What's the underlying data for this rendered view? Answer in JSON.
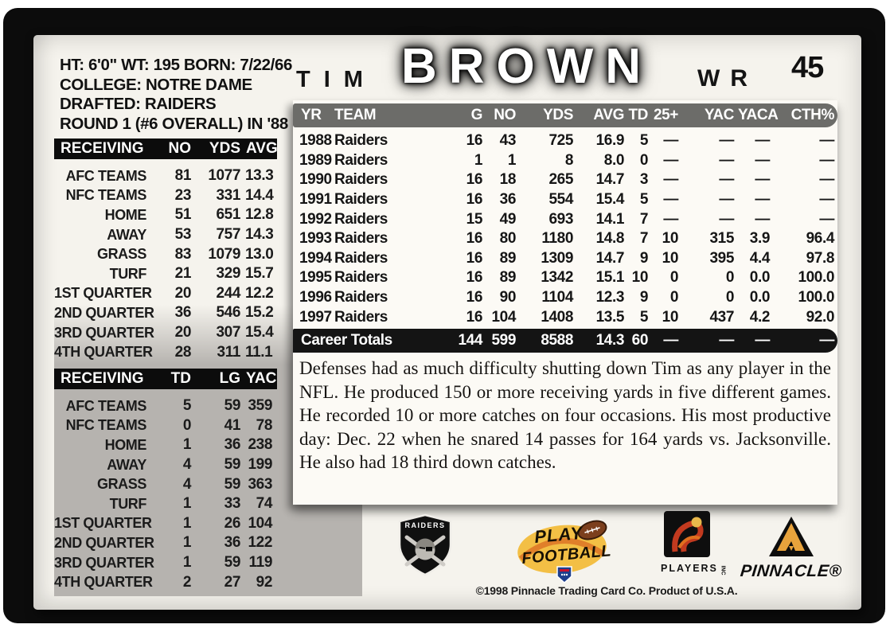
{
  "card": {
    "number": "45",
    "first_name": "TIM",
    "last_name": "BROWN",
    "position": "WR"
  },
  "bio": {
    "lines": [
      "HT: 6'0\" WT: 195 BORN: 7/22/66",
      "COLLEGE: NOTRE DAME",
      "DRAFTED: RAIDERS",
      "ROUND 1 (#6 OVERALL) IN '88"
    ]
  },
  "splits_receiving_yards": {
    "headers": [
      "RECEIVING",
      "NO",
      "YDS",
      "AVG"
    ],
    "rows": [
      [
        "AFC TEAMS",
        "81",
        "1077",
        "13.3"
      ],
      [
        "NFC TEAMS",
        "23",
        "331",
        "14.4"
      ],
      [
        "HOME",
        "51",
        "651",
        "12.8"
      ],
      [
        "AWAY",
        "53",
        "757",
        "14.3"
      ],
      [
        "GRASS",
        "83",
        "1079",
        "13.0"
      ],
      [
        "TURF",
        "21",
        "329",
        "15.7"
      ],
      [
        "1ST QUARTER",
        "20",
        "244",
        "12.2"
      ],
      [
        "2ND QUARTER",
        "36",
        "546",
        "15.2"
      ],
      [
        "3RD QUARTER",
        "20",
        "307",
        "15.4"
      ],
      [
        "4TH QUARTER",
        "28",
        "311",
        "11.1"
      ]
    ]
  },
  "splits_receiving_tds": {
    "headers": [
      "RECEIVING",
      "TD",
      "LG",
      "YAC"
    ],
    "rows": [
      [
        "AFC TEAMS",
        "5",
        "59",
        "359"
      ],
      [
        "NFC TEAMS",
        "0",
        "41",
        "78"
      ],
      [
        "HOME",
        "1",
        "36",
        "238"
      ],
      [
        "AWAY",
        "4",
        "59",
        "199"
      ],
      [
        "GRASS",
        "4",
        "59",
        "363"
      ],
      [
        "TURF",
        "1",
        "33",
        "74"
      ],
      [
        "1ST QUARTER",
        "1",
        "26",
        "104"
      ],
      [
        "2ND QUARTER",
        "1",
        "36",
        "122"
      ],
      [
        "3RD QUARTER",
        "1",
        "59",
        "119"
      ],
      [
        "4TH QUARTER",
        "2",
        "27",
        "92"
      ]
    ]
  },
  "season_stats": {
    "headers": [
      "YR",
      "TEAM",
      "G",
      "NO",
      "YDS",
      "AVG",
      "TD",
      "25+",
      "YAC",
      "YACA",
      "CTH%"
    ],
    "rows": [
      [
        "1988",
        "Raiders",
        "16",
        "43",
        "725",
        "16.9",
        "5",
        "—",
        "—",
        "—",
        "—"
      ],
      [
        "1989",
        "Raiders",
        "1",
        "1",
        "8",
        "8.0",
        "0",
        "—",
        "—",
        "—",
        "—"
      ],
      [
        "1990",
        "Raiders",
        "16",
        "18",
        "265",
        "14.7",
        "3",
        "—",
        "—",
        "—",
        "—"
      ],
      [
        "1991",
        "Raiders",
        "16",
        "36",
        "554",
        "15.4",
        "5",
        "—",
        "—",
        "—",
        "—"
      ],
      [
        "1992",
        "Raiders",
        "15",
        "49",
        "693",
        "14.1",
        "7",
        "—",
        "—",
        "—",
        "—"
      ],
      [
        "1993",
        "Raiders",
        "16",
        "80",
        "1180",
        "14.8",
        "7",
        "10",
        "315",
        "3.9",
        "96.4"
      ],
      [
        "1994",
        "Raiders",
        "16",
        "89",
        "1309",
        "14.7",
        "9",
        "10",
        "395",
        "4.4",
        "97.8"
      ],
      [
        "1995",
        "Raiders",
        "16",
        "89",
        "1342",
        "15.1",
        "10",
        "0",
        "0",
        "0.0",
        "100.0"
      ],
      [
        "1996",
        "Raiders",
        "16",
        "90",
        "1104",
        "12.3",
        "9",
        "0",
        "0",
        "0.0",
        "100.0"
      ],
      [
        "1997",
        "Raiders",
        "16",
        "104",
        "1408",
        "13.5",
        "5",
        "10",
        "437",
        "4.2",
        "92.0"
      ]
    ],
    "career": [
      [
        "Career Totals",
        "",
        "144",
        "599",
        "8588",
        "14.3",
        "60",
        "—",
        "—",
        "—",
        "—"
      ]
    ]
  },
  "summary": {
    "text": "Defenses had as much difficulty shutting down Tim as any player in the NFL. He produced 150 or more receiving yards in five different games. He recorded 10 or more catches on four occasions. His most productive day: Dec. 22 when he snared 14 passes for 164 yards vs. Jacksonville. He also had 18 third down catches."
  },
  "footer": {
    "raiders_label": "RAIDERS",
    "play_football_line1": "PLAY",
    "play_football_line2": "FOOTBALL",
    "players_label": "PLAYERS",
    "players_inc": "INC",
    "pinnacle_label": "PINNACLE®",
    "copyright": "©1998 Pinnacle Trading Card Co. Product of U.S.A."
  },
  "colors": {
    "card_background": "#f5f3ed",
    "mat_black": "#0c0c0c",
    "panel_gray": "#b6b3af",
    "season_header_gray": "#6c6c69",
    "career_bar_black": "#141414",
    "pinnacle_gold": "#e8a33c",
    "players_rust": "#c23a1f",
    "nfl_shield_blue": "#1d3e8c",
    "football_brown": "#7c3f1d",
    "play_yellow": "#f3bf45",
    "play_orange": "#e07f2a"
  }
}
